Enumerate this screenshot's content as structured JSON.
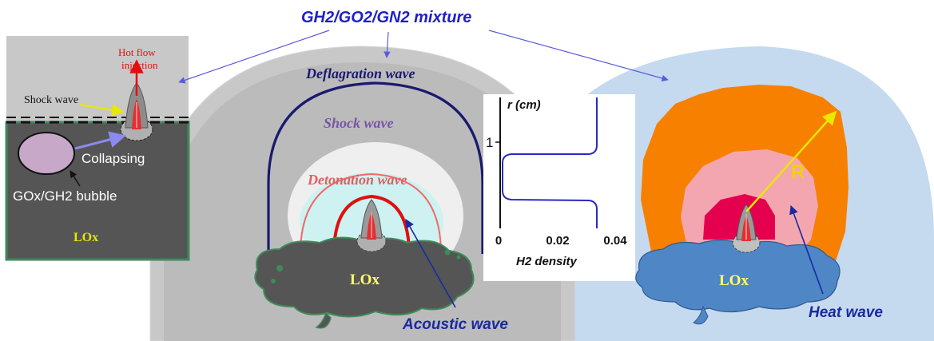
{
  "title": "GH2/GO2/GN2 mixture",
  "left_panel": {
    "hot_flow_line1": "Hot flow",
    "hot_flow_line2": "injection",
    "shock_wave": "Shock wave",
    "collapsing": "Collapsing",
    "bubble": "GOx/GH2 bubble",
    "lox": "LOx"
  },
  "center_panel": {
    "deflagration_wave": "Deflagration wave",
    "shock_wave": "Shock wave",
    "detonation_wave": "Detonation wave",
    "lox": "LOx",
    "acoustic_wave": "Acoustic  wave"
  },
  "inset_chart": {
    "ylabel": "r (cm)",
    "xlabel": "H2  density",
    "y_tick": "1",
    "x_ticks": [
      "0",
      "0.02",
      "0.04"
    ]
  },
  "right_panel": {
    "radius_label": "R",
    "lox": "LOx",
    "heat_wave": "Heat wave"
  },
  "colors": {
    "title": "#1f1fc8",
    "lox_green": "#5a7a68",
    "lox_blue": "#4f86c6",
    "orange": "#f78000",
    "pink": "#f4a6b0",
    "crimson": "#e5004f",
    "deflagration": "#1a1a6e",
    "detonation": "#e06060",
    "profile_line": "#2a2ac0"
  }
}
